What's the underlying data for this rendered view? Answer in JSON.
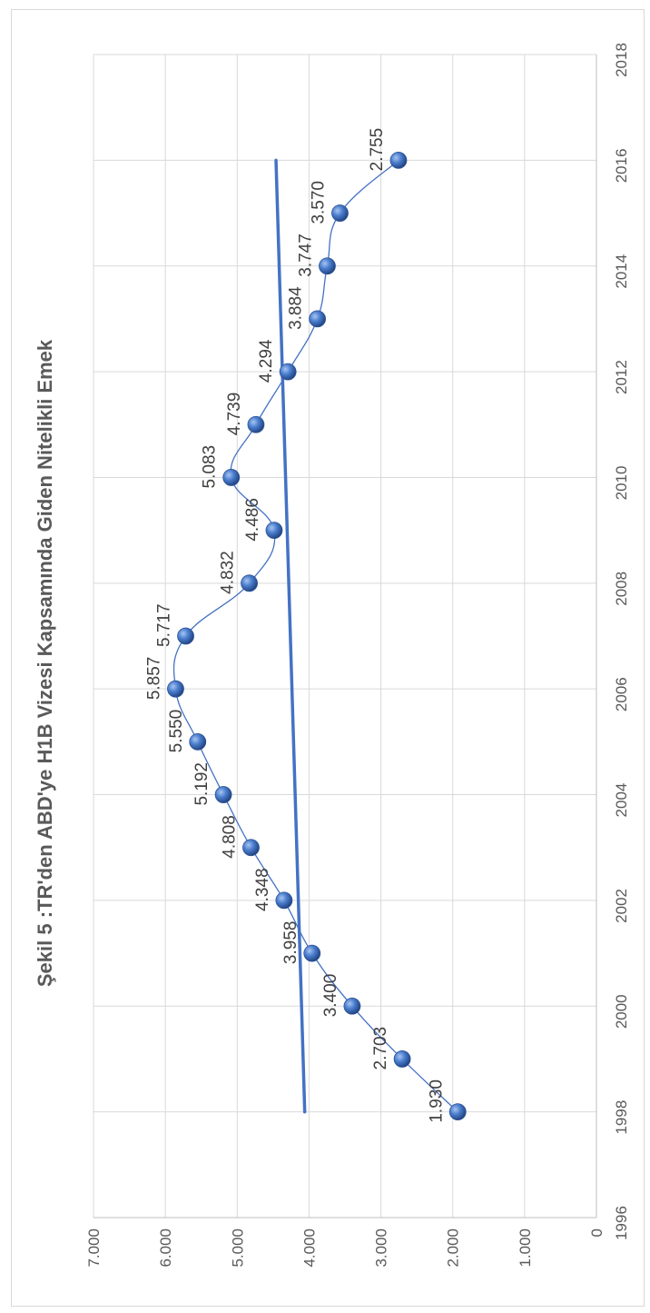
{
  "chart_data": {
    "type": "scatter",
    "title": "Şekil 5 :TR'den ABD'ye H1B Vizesi Kapsamında Giden Nitelikli Emek",
    "xlabel": "",
    "ylabel": "",
    "xlim": [
      1996,
      2018
    ],
    "ylim": [
      0,
      7000
    ],
    "x_ticks": [
      "1996",
      "1998",
      "2000",
      "2002",
      "2004",
      "2006",
      "2008",
      "2010",
      "2012",
      "2014",
      "2016",
      "2018"
    ],
    "y_ticks": [
      "0",
      "1.000",
      "2.000",
      "3.000",
      "4.000",
      "5.000",
      "6.000",
      "7.000"
    ],
    "grid": true,
    "orientation": "rotated 90° clockwise (x axis runs top to bottom on the right edge)",
    "series": [
      {
        "x": [
          1998,
          1999,
          2000,
          2001,
          2002,
          2003,
          2004,
          2005,
          2006,
          2007,
          2008,
          2009,
          2010,
          2011,
          2012,
          2013,
          2014,
          2015,
          2016
        ],
        "values": [
          1930,
          2703,
          3400,
          3958,
          4348,
          4808,
          5192,
          5550,
          5857,
          5717,
          4832,
          4486,
          5083,
          4739,
          4294,
          3884,
          3747,
          3570,
          2755
        ],
        "labels": [
          "1.930",
          "2.703",
          "3.400",
          "3.958",
          "4.348",
          "4.808",
          "5.192",
          "5.550",
          "5.857",
          "5.717",
          "4.832",
          "4.486",
          "5.083",
          "4.739",
          "4.294",
          "3.884",
          "3.747",
          "3.570",
          "2.755"
        ],
        "style": "smoothed line with markers",
        "color": "#4472c4"
      }
    ],
    "trendline": {
      "type": "linear",
      "x": [
        1998,
        2016
      ],
      "values": [
        4060,
        4460
      ],
      "color": "#4472c4"
    }
  }
}
